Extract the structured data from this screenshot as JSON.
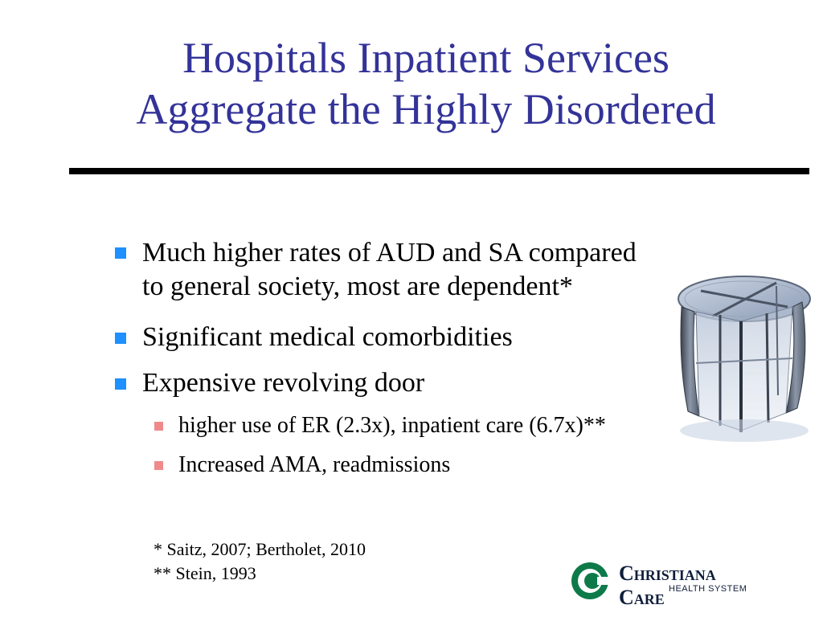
{
  "slide": {
    "title_line1": "Hospitals Inpatient Services",
    "title_line2": "Aggregate the Highly Disordered"
  },
  "bullets": [
    {
      "level": 1,
      "lines": [
        "Much higher rates of AUD and SA compared",
        "to general society, most are dependent*"
      ]
    },
    {
      "level": 1,
      "lines": [
        "Significant medical comorbidities"
      ]
    },
    {
      "level": 1,
      "lines": [
        "Expensive revolving door"
      ]
    },
    {
      "level": 2,
      "lines": [
        "higher use of ER (2.3x), inpatient care (6.7x)**"
      ]
    },
    {
      "level": 2,
      "lines": [
        "Increased AMA, readmissions"
      ]
    }
  ],
  "footnotes": [
    "* Saitz, 2007; Bertholet, 2010",
    "** Stein, 1993"
  ],
  "logo": {
    "name": "Christiana Care",
    "subtitle": "HEALTH SYSTEM"
  },
  "colors": {
    "title": "#333399",
    "level1_bullet": "#1e90ff",
    "level2_bullet": "#f08a8a",
    "logo_green": "#0e7a4a"
  },
  "images": {
    "revolving_door": "revolving-door-illustration"
  }
}
